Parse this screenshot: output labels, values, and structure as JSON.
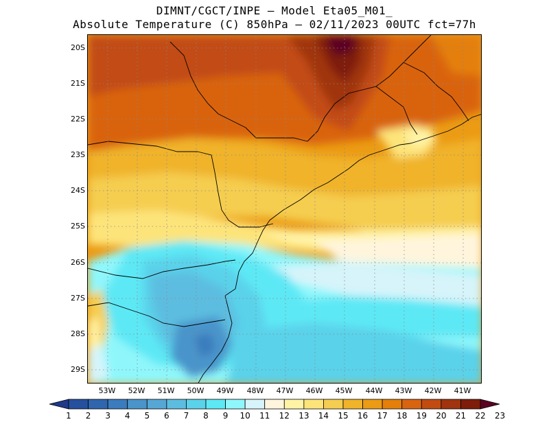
{
  "title": {
    "line1": "DIMNT/CGCT/INPE –  Model Eta05_M01_",
    "line2": "Absolute Temperature (C) 850hPa –  02/11/2023 00UTC fct=77h"
  },
  "map": {
    "lat_labels": [
      "20S",
      "21S",
      "22S",
      "23S",
      "24S",
      "25S",
      "26S",
      "27S",
      "28S",
      "29S"
    ],
    "lon_labels": [
      "53W",
      "52W",
      "51W",
      "50W",
      "49W",
      "48W",
      "47W",
      "46W",
      "45W",
      "44W",
      "43W",
      "42W",
      "41W"
    ],
    "grid": "dotted"
  },
  "colorbar": {
    "labels": [
      "1",
      "2",
      "3",
      "4",
      "5",
      "6",
      "7",
      "8",
      "9",
      "10",
      "11",
      "12",
      "13",
      "14",
      "15",
      "16",
      "17",
      "18",
      "19",
      "20",
      "21",
      "22",
      "23"
    ],
    "colors": [
      "#1f3a8a",
      "#25509e",
      "#2f66ae",
      "#3a7cbd",
      "#4a94cb",
      "#56a7d6",
      "#5cbde0",
      "#5ad2ea",
      "#5de8f5",
      "#8ff7fb",
      "#d6f4fa",
      "#fff5dd",
      "#fff3a6",
      "#fde47a",
      "#f5cd50",
      "#f0b32a",
      "#eb9b14",
      "#e47f0c",
      "#d96410",
      "#c24b12",
      "#a0340e",
      "#7e1d0a",
      "#5c0024"
    ]
  }
}
